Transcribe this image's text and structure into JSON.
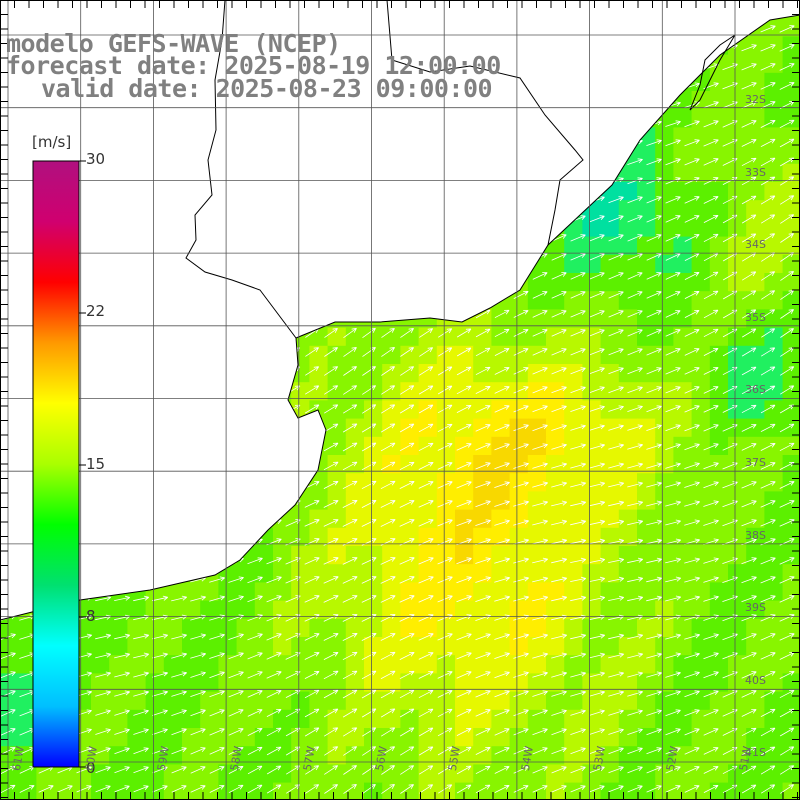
{
  "title": {
    "model": "modelo GEFS-WAVE (NCEP)",
    "forecast": "forecast date: 2025-08-19 12:00:00",
    "valid": "valid date: 2025-08-23 09:00:00"
  },
  "colorbar": {
    "units": "[m/s]",
    "ticks": [
      "30",
      "22",
      "15",
      "8",
      "0"
    ],
    "min": 0,
    "max": 30,
    "colors": [
      "#0000ff",
      "#00bfff",
      "#00ffff",
      "#00e070",
      "#00ff00",
      "#aaff00",
      "#ffff00",
      "#ff9900",
      "#ff0000",
      "#d0006f",
      "#b0107f"
    ]
  },
  "grid": {
    "lat_labels": [
      "32S",
      "33S",
      "34S",
      "35S",
      "36S",
      "37S",
      "38S",
      "39S",
      "40S",
      "41S"
    ],
    "lon_labels": [
      "61W",
      "60W",
      "59W",
      "58W",
      "57W",
      "56W",
      "55W",
      "54W",
      "53W",
      "52W",
      "51W"
    ]
  },
  "colors": {
    "land": "#ffffff",
    "coast": "#000000",
    "grid": "#555555",
    "arrows": "#ffffff",
    "title": "#808080"
  }
}
